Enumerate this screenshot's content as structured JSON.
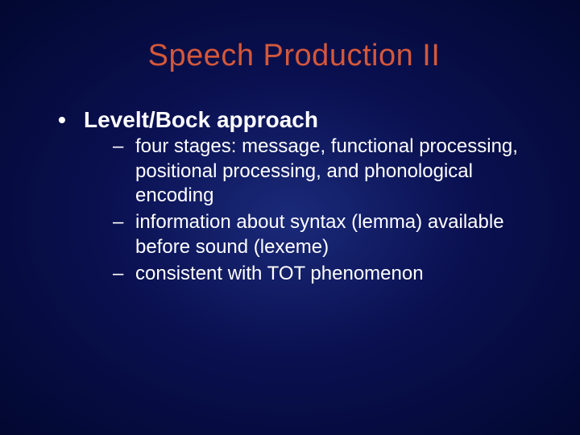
{
  "title": {
    "text": "Speech Production II",
    "color": "#d4583a",
    "fontsize": 38
  },
  "bullets": {
    "lvl1": [
      {
        "text": "Levelt/Bock approach",
        "color": "#ffffff",
        "fontsize": 28,
        "sub": [
          {
            "text": "four stages:  message, functional processing, positional processing, and phonological encoding",
            "color": "#ffffff",
            "fontsize": 24
          },
          {
            "text": "information about syntax (lemma) available before sound (lexeme)",
            "color": "#ffffff",
            "fontsize": 24
          },
          {
            "text": "consistent with TOT phenomenon",
            "color": "#ffffff",
            "fontsize": 24
          }
        ]
      }
    ]
  },
  "background": {
    "center": "#1a2a7a",
    "mid": "#0a1050",
    "edge": "#020830"
  }
}
